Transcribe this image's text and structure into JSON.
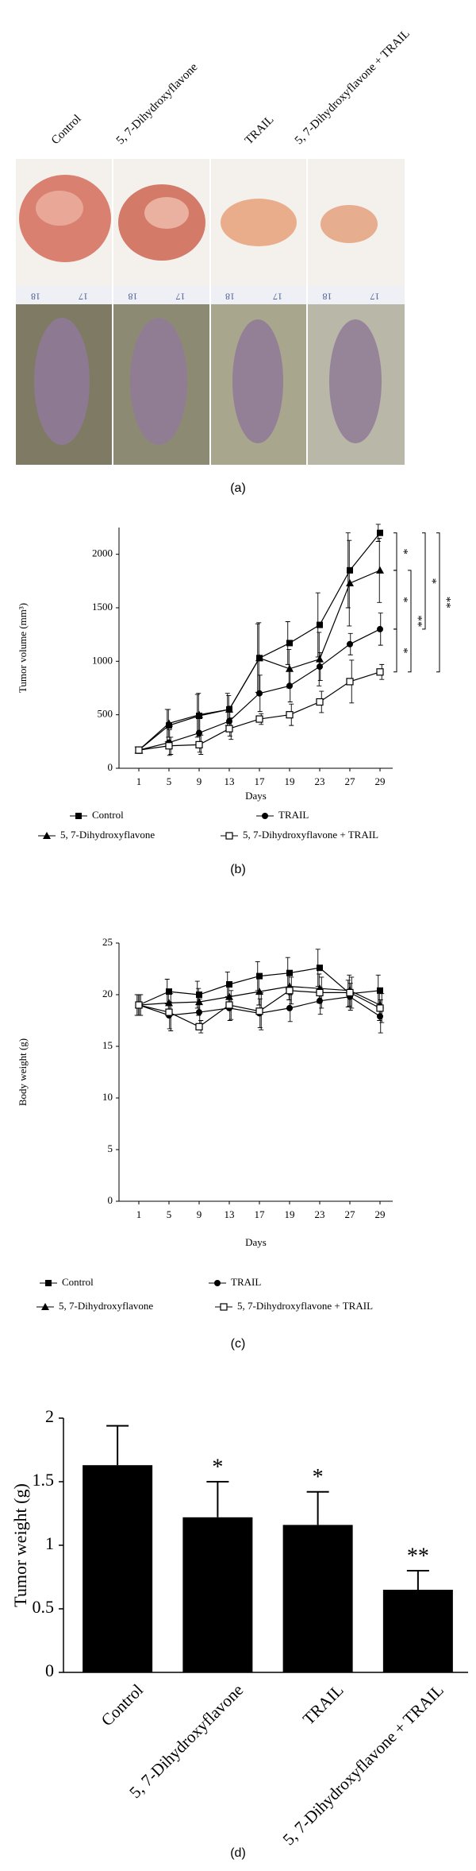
{
  "photo_panel": {
    "labels": [
      "Control",
      "5, 7-Dihydroxyflavone",
      "TRAIL",
      "5, 7-Dihydroxyflavone + TRAIL"
    ],
    "ruler_labels": [
      "18",
      "17"
    ],
    "caption": "(a)"
  },
  "chart_data": [
    {
      "type": "line",
      "caption": "(b)",
      "ylabel": "Tumor volume (mm³)",
      "xlabel": "Days",
      "categories": [
        "1",
        "5",
        "9",
        "13",
        "17",
        "19",
        "23",
        "27",
        "29"
      ],
      "ylim": [
        0,
        2250
      ],
      "yticks": [
        0,
        500,
        1000,
        1500,
        2000
      ],
      "series": [
        {
          "name": "Control",
          "color": "#000000",
          "marker": "square",
          "values": [
            170,
            400,
            490,
            550,
            1030,
            1170,
            1340,
            1850,
            2200
          ],
          "errors": [
            30,
            150,
            200,
            150,
            320,
            200,
            300,
            350,
            80
          ]
        },
        {
          "name": "5, 7-Dihydroxyflavone",
          "color": "#000000",
          "marker": "triangle",
          "values": [
            170,
            420,
            500,
            550,
            1030,
            930,
            1020,
            1730,
            1850
          ],
          "errors": [
            30,
            130,
            200,
            130,
            330,
            180,
            250,
            400,
            300
          ]
        },
        {
          "name": "TRAIL",
          "color": "#000000",
          "marker": "circle",
          "values": [
            170,
            240,
            330,
            440,
            700,
            770,
            950,
            1160,
            1300
          ],
          "errors": [
            30,
            120,
            180,
            140,
            170,
            150,
            130,
            100,
            150
          ]
        },
        {
          "name": "5, 7-Dihydroxyflavone + TRAIL",
          "color": "#000000",
          "marker": "square-open",
          "values": [
            170,
            210,
            220,
            370,
            460,
            500,
            620,
            810,
            900
          ],
          "errors": [
            30,
            80,
            90,
            100,
            50,
            100,
            100,
            200,
            70
          ]
        }
      ],
      "annotations": [
        "*",
        "*",
        "*",
        "**",
        "*",
        "**"
      ]
    },
    {
      "type": "line",
      "caption": "(c)",
      "ylabel": "Body weight (g)",
      "xlabel": "Days",
      "categories": [
        "1",
        "5",
        "9",
        "13",
        "17",
        "19",
        "23",
        "27",
        "29"
      ],
      "ylim": [
        0,
        25
      ],
      "yticks": [
        0,
        5,
        10,
        15,
        20,
        25
      ],
      "series": [
        {
          "name": "Control",
          "color": "#000000",
          "marker": "square",
          "values": [
            19.0,
            20.3,
            20.0,
            21.0,
            21.8,
            22.1,
            22.6,
            20.1,
            20.4
          ],
          "errors": [
            1.0,
            1.2,
            1.3,
            1.2,
            1.4,
            1.5,
            1.8,
            1.3,
            1.5
          ]
        },
        {
          "name": "5, 7-Dihydroxyflavone",
          "color": "#000000",
          "marker": "triangle",
          "values": [
            19.0,
            19.2,
            19.3,
            19.8,
            20.3,
            20.8,
            20.6,
            20.4,
            19.0
          ],
          "errors": [
            1.0,
            1.2,
            1.3,
            1.2,
            1.3,
            1.3,
            1.4,
            1.5,
            1.5
          ]
        },
        {
          "name": "TRAIL",
          "color": "#000000",
          "marker": "circle",
          "values": [
            19.0,
            18.0,
            18.3,
            18.7,
            18.2,
            18.7,
            19.4,
            19.8,
            17.9
          ],
          "errors": [
            1.0,
            1.3,
            1.3,
            1.2,
            1.4,
            1.3,
            1.3,
            1.3,
            1.6
          ]
        },
        {
          "name": "5, 7-Dihydroxyflavone + TRAIL",
          "color": "#000000",
          "marker": "square-open",
          "values": [
            19.0,
            18.3,
            16.9,
            19.0,
            18.4,
            20.4,
            20.2,
            20.2,
            18.7
          ],
          "errors": [
            1.0,
            1.8,
            0.6,
            1.4,
            1.8,
            1.3,
            1.5,
            1.5,
            1.4
          ]
        }
      ]
    },
    {
      "type": "bar",
      "caption": "(d)",
      "ylabel": "Tumor weight (g)",
      "categories": [
        "Control",
        "5, 7-Dihydroxyflavone",
        "TRAIL",
        "5, 7-Dihydroxyflavone + TRAIL"
      ],
      "values": [
        1.63,
        1.22,
        1.16,
        0.65
      ],
      "errors": [
        0.31,
        0.28,
        0.26,
        0.15
      ],
      "color": "#000000",
      "ylim": [
        0,
        2
      ],
      "yticks": [
        0,
        0.5,
        1,
        1.5,
        2
      ],
      "annotations": [
        {
          "index": 1,
          "label": "*"
        },
        {
          "index": 2,
          "label": "*"
        },
        {
          "index": 3,
          "label": "**"
        }
      ]
    }
  ]
}
